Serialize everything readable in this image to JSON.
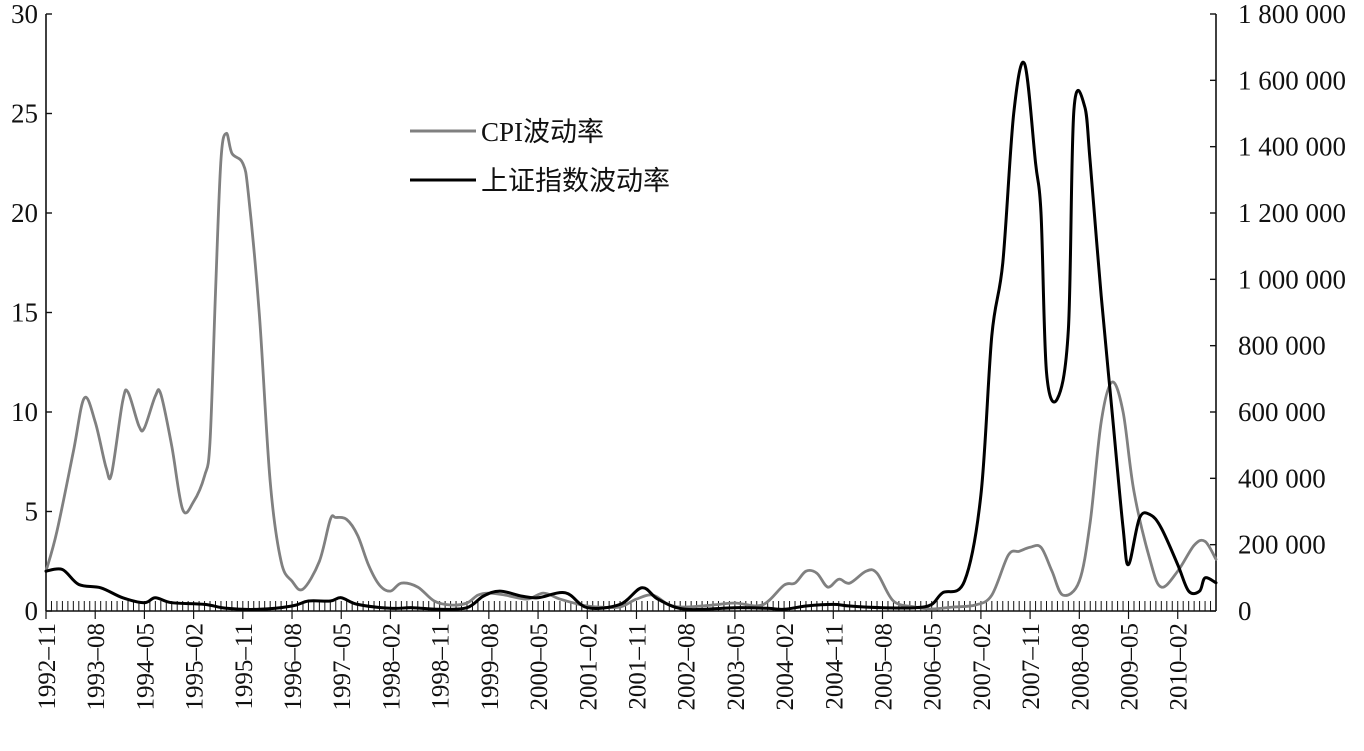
{
  "chart_data": {
    "type": "line",
    "title": "",
    "xlabel": "",
    "ylabel": "",
    "y2label": "",
    "ylim": [
      0,
      30
    ],
    "y2lim": [
      0,
      1800000
    ],
    "yticks": [
      "0",
      "5",
      "10",
      "15",
      "20",
      "25",
      "30"
    ],
    "y2ticks": [
      "0",
      "200 000",
      "400 000",
      "600 000",
      "800 000",
      "1 000 000",
      "1 200 000",
      "1 400 000",
      "1 600 000",
      "1 800 000"
    ],
    "xticks": [
      "1992–11",
      "1993–08",
      "1994–05",
      "1995–02",
      "1995–11",
      "1996–08",
      "1997–05",
      "1998–02",
      "1998–11",
      "1999–08",
      "2000–05",
      "2001–02",
      "2001–11",
      "2002–08",
      "2003–05",
      "2004–02",
      "2004–11",
      "2005–08",
      "2006–05",
      "2007–02",
      "2007–11",
      "2008–08",
      "2009–05",
      "2010–02"
    ],
    "grid": false,
    "legend_position": "upper-left",
    "series": [
      {
        "name": "CPI波动率",
        "axis": "left",
        "color": "#808080",
        "points": [
          [
            "1992-11",
            2.0
          ],
          [
            "1993-01",
            4.0
          ],
          [
            "1993-04",
            8.0
          ],
          [
            "1993-06",
            10.7
          ],
          [
            "1993-08",
            9.5
          ],
          [
            "1993-10",
            7.2
          ],
          [
            "1993-11",
            6.9
          ],
          [
            "1994-01",
            10.5
          ],
          [
            "1994-02",
            11.0
          ],
          [
            "1994-04",
            9.3
          ],
          [
            "1994-05",
            9.2
          ],
          [
            "1994-07",
            10.8
          ],
          [
            "1994-08",
            10.9
          ],
          [
            "1994-10",
            8.3
          ],
          [
            "1994-12",
            5.1
          ],
          [
            "1995-02",
            5.5
          ],
          [
            "1995-04",
            6.8
          ],
          [
            "1995-05",
            8.5
          ],
          [
            "1995-06",
            16.0
          ],
          [
            "1995-07",
            22.7
          ],
          [
            "1995-08",
            24.0
          ],
          [
            "1995-09",
            23.0
          ],
          [
            "1995-11",
            22.5
          ],
          [
            "1995-12",
            21.0
          ],
          [
            "1996-02",
            15.0
          ],
          [
            "1996-04",
            6.5
          ],
          [
            "1996-06",
            2.5
          ],
          [
            "1996-08",
            1.5
          ],
          [
            "1996-10",
            1.1
          ],
          [
            "1997-01",
            2.5
          ],
          [
            "1997-03",
            4.6
          ],
          [
            "1997-04",
            4.7
          ],
          [
            "1997-06",
            4.6
          ],
          [
            "1997-08",
            3.8
          ],
          [
            "1997-10",
            2.3
          ],
          [
            "1997-12",
            1.3
          ],
          [
            "1998-02",
            1.0
          ],
          [
            "1998-04",
            1.4
          ],
          [
            "1998-07",
            1.2
          ],
          [
            "1998-10",
            0.5
          ],
          [
            "1999-01",
            0.3
          ],
          [
            "1999-04",
            0.4
          ],
          [
            "1999-06",
            0.8
          ],
          [
            "1999-08",
            0.9
          ],
          [
            "1999-11",
            0.8
          ],
          [
            "2000-03",
            0.6
          ],
          [
            "2000-06",
            0.9
          ],
          [
            "2000-09",
            0.6
          ],
          [
            "2001-01",
            0.3
          ],
          [
            "2001-04",
            0.2
          ],
          [
            "2001-08",
            0.2
          ],
          [
            "2001-11",
            0.6
          ],
          [
            "2002-02",
            0.8
          ],
          [
            "2002-05",
            0.3
          ],
          [
            "2002-08",
            0.2
          ],
          [
            "2003-01",
            0.3
          ],
          [
            "2003-05",
            0.4
          ],
          [
            "2003-10",
            0.3
          ],
          [
            "2004-02",
            1.3
          ],
          [
            "2004-04",
            1.4
          ],
          [
            "2004-06",
            2.0
          ],
          [
            "2004-08",
            1.9
          ],
          [
            "2004-10",
            1.2
          ],
          [
            "2004-12",
            1.6
          ],
          [
            "2005-02",
            1.4
          ],
          [
            "2005-05",
            2.0
          ],
          [
            "2005-07",
            1.9
          ],
          [
            "2005-10",
            0.5
          ],
          [
            "2006-02",
            0.2
          ],
          [
            "2006-05",
            0.1
          ],
          [
            "2006-09",
            0.2
          ],
          [
            "2007-01",
            0.3
          ],
          [
            "2007-04",
            0.8
          ],
          [
            "2007-07",
            2.8
          ],
          [
            "2007-09",
            3.0
          ],
          [
            "2007-11",
            3.2
          ],
          [
            "2008-01",
            3.2
          ],
          [
            "2008-03",
            2.0
          ],
          [
            "2008-05",
            0.8
          ],
          [
            "2008-08",
            1.5
          ],
          [
            "2008-10",
            4.5
          ],
          [
            "2008-12",
            9.5
          ],
          [
            "2009-02",
            11.5
          ],
          [
            "2009-04",
            10.0
          ],
          [
            "2009-06",
            6.0
          ],
          [
            "2009-09",
            2.5
          ],
          [
            "2009-11",
            1.2
          ],
          [
            "2010-02",
            2.0
          ],
          [
            "2010-05",
            3.3
          ],
          [
            "2010-07",
            3.5
          ],
          [
            "2010-09",
            2.6
          ]
        ]
      },
      {
        "name": "上证指数波动率",
        "axis": "right",
        "color": "#000000",
        "points": [
          [
            "1992-11",
            120000
          ],
          [
            "1993-02",
            125000
          ],
          [
            "1993-05",
            80000
          ],
          [
            "1993-09",
            70000
          ],
          [
            "1994-01",
            40000
          ],
          [
            "1994-05",
            25000
          ],
          [
            "1994-07",
            40000
          ],
          [
            "1994-10",
            25000
          ],
          [
            "1995-04",
            20000
          ],
          [
            "1995-08",
            8000
          ],
          [
            "1996-02",
            5000
          ],
          [
            "1996-08",
            15000
          ],
          [
            "1996-11",
            30000
          ],
          [
            "1997-03",
            30000
          ],
          [
            "1997-05",
            40000
          ],
          [
            "1997-08",
            20000
          ],
          [
            "1998-02",
            8000
          ],
          [
            "1998-06",
            10000
          ],
          [
            "1998-11",
            5000
          ],
          [
            "1999-04",
            10000
          ],
          [
            "1999-07",
            45000
          ],
          [
            "1999-10",
            60000
          ],
          [
            "2000-02",
            45000
          ],
          [
            "2000-05",
            40000
          ],
          [
            "2000-10",
            55000
          ],
          [
            "2001-02",
            10000
          ],
          [
            "2001-08",
            20000
          ],
          [
            "2001-12",
            70000
          ],
          [
            "2002-03",
            35000
          ],
          [
            "2002-08",
            5000
          ],
          [
            "2003-05",
            10000
          ],
          [
            "2003-11",
            8000
          ],
          [
            "2004-02",
            5000
          ],
          [
            "2004-06",
            15000
          ],
          [
            "2004-11",
            20000
          ],
          [
            "2005-02",
            15000
          ],
          [
            "2005-08",
            10000
          ],
          [
            "2006-02",
            10000
          ],
          [
            "2006-05",
            20000
          ],
          [
            "2006-07",
            55000
          ],
          [
            "2006-11",
            90000
          ],
          [
            "2007-02",
            350000
          ],
          [
            "2007-04",
            830000
          ],
          [
            "2007-06",
            1050000
          ],
          [
            "2007-08",
            1500000
          ],
          [
            "2007-10",
            1650000
          ],
          [
            "2007-12",
            1350000
          ],
          [
            "2008-01",
            1200000
          ],
          [
            "2008-02",
            720000
          ],
          [
            "2008-04",
            640000
          ],
          [
            "2008-06",
            850000
          ],
          [
            "2008-07",
            1510000
          ],
          [
            "2008-09",
            1520000
          ],
          [
            "2008-10",
            1350000
          ],
          [
            "2008-12",
            950000
          ],
          [
            "2009-02",
            600000
          ],
          [
            "2009-04",
            250000
          ],
          [
            "2009-05",
            140000
          ],
          [
            "2009-07",
            280000
          ],
          [
            "2009-09",
            290000
          ],
          [
            "2009-11",
            250000
          ],
          [
            "2010-02",
            140000
          ],
          [
            "2010-04",
            60000
          ],
          [
            "2010-06",
            60000
          ],
          [
            "2010-07",
            100000
          ],
          [
            "2010-09",
            85000
          ]
        ]
      }
    ]
  }
}
